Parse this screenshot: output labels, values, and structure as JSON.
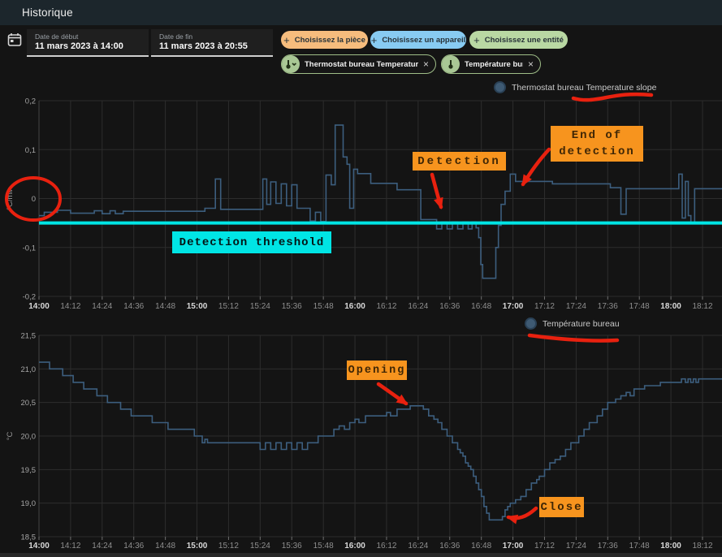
{
  "header": {
    "title": "Historique"
  },
  "toolbar": {
    "date_start": {
      "label": "Date de début",
      "value": "11 mars 2023 à 14:00"
    },
    "date_end": {
      "label": "Date de fin",
      "value": "11 mars 2023 à 20:55"
    },
    "filter_chips": [
      {
        "label": "Choisissez la pièce",
        "glyph": "+",
        "bg": "#f6bc7d"
      },
      {
        "label": "Choisissez un appareil",
        "glyph": "+",
        "bg": "#88cbf2"
      },
      {
        "label": "Choisissez une entité",
        "glyph": "+",
        "bg": "#b9d8a3"
      }
    ],
    "entity_chips": [
      {
        "label": "Thermostat bureau Temperature slope",
        "icon": "thermometer-chevron-icon",
        "close_glyph": "×"
      },
      {
        "label": "Température bureau",
        "icon": "thermometer-icon",
        "close_glyph": "×"
      }
    ]
  },
  "annotations": {
    "detection": "Detection",
    "end_of_detection_line1": "End of",
    "end_of_detection_line2": "detection",
    "detection_threshold": "Detection threshold",
    "opening": "Opening",
    "close": "Close"
  },
  "colors": {
    "annotation_orange": "#f7941e",
    "annotation_cyan": "#00e5e5",
    "annotation_red": "#e8210f",
    "series_blue": "#3c5e7e",
    "header_bg": "#1c262c"
  },
  "chart_data": [
    {
      "type": "line",
      "step": true,
      "name": "slope-chart",
      "legend": "Thermostat bureau Temperature slope",
      "ylabel": "°C/min",
      "ylim": [
        -0.2,
        0.2
      ],
      "grid": true,
      "legend_position": "top-center-right",
      "line_color": "#3c5e7e",
      "threshold": {
        "value": -0.05,
        "color": "#00e5e5",
        "label": "Detection threshold"
      },
      "y_ticks": [
        {
          "value": 0.2,
          "label": "0,2"
        },
        {
          "value": 0.1,
          "label": "0,1"
        },
        {
          "value": 0,
          "label": "0"
        },
        {
          "value": -0.1,
          "label": "-0,1"
        },
        {
          "value": -0.2,
          "label": "-0,2"
        }
      ],
      "x_ticks": [
        "14:00",
        "14:12",
        "14:24",
        "14:36",
        "14:48",
        "15:00",
        "15:12",
        "15:24",
        "15:36",
        "15:48",
        "16:00",
        "16:12",
        "16:24",
        "16:36",
        "16:48",
        "17:00",
        "17:12",
        "17:24",
        "17:36",
        "17:48",
        "18:00",
        "18:12"
      ],
      "x_unit": "minutes_after_14:00",
      "points": [
        [
          0,
          -0.035
        ],
        [
          2,
          -0.028
        ],
        [
          7,
          -0.024
        ],
        [
          12,
          -0.03
        ],
        [
          21,
          -0.025
        ],
        [
          24,
          -0.031
        ],
        [
          27,
          -0.025
        ],
        [
          29,
          -0.031
        ],
        [
          32,
          -0.026
        ],
        [
          63,
          -0.02
        ],
        [
          67,
          0.04
        ],
        [
          69,
          -0.022
        ],
        [
          85,
          0.04
        ],
        [
          86.5,
          -0.012
        ],
        [
          88,
          0.034
        ],
        [
          90,
          -0.01
        ],
        [
          92,
          0.03
        ],
        [
          94,
          -0.015
        ],
        [
          96,
          0.028
        ],
        [
          98,
          -0.02
        ],
        [
          103,
          -0.046
        ],
        [
          105,
          -0.028
        ],
        [
          107,
          -0.047
        ],
        [
          109,
          0.048
        ],
        [
          111,
          0.028
        ],
        [
          112.5,
          0.15
        ],
        [
          115.5,
          0.085
        ],
        [
          117,
          0.07
        ],
        [
          118,
          -0.02
        ],
        [
          119.5,
          0.06
        ],
        [
          121,
          0.051
        ],
        [
          126,
          0.031
        ],
        [
          136,
          0.018
        ],
        [
          145,
          -0.043
        ],
        [
          151,
          -0.062
        ],
        [
          153,
          -0.048
        ],
        [
          155,
          -0.062
        ],
        [
          157,
          -0.048
        ],
        [
          159,
          -0.062
        ],
        [
          161,
          -0.048
        ],
        [
          163,
          -0.062
        ],
        [
          164.5,
          -0.048
        ],
        [
          166,
          -0.06
        ],
        [
          167,
          -0.08
        ],
        [
          167.8,
          -0.135
        ],
        [
          168.5,
          -0.163
        ],
        [
          173.5,
          -0.1
        ],
        [
          174.5,
          -0.055
        ],
        [
          175.5,
          -0.012
        ],
        [
          177,
          0.015
        ],
        [
          179,
          0.05
        ],
        [
          181,
          0.035
        ],
        [
          195,
          0.03
        ],
        [
          217,
          0.022
        ],
        [
          221,
          -0.032
        ],
        [
          223,
          0.02
        ],
        [
          243,
          0.05
        ],
        [
          244.3,
          -0.04
        ],
        [
          245.5,
          0.035
        ],
        [
          246.6,
          -0.035
        ],
        [
          247.6,
          -0.05
        ],
        [
          249,
          0.02
        ]
      ]
    },
    {
      "type": "line",
      "step": true,
      "name": "temperature-chart",
      "legend": "Température bureau",
      "ylabel": "°C",
      "ylim": [
        18.5,
        21.5
      ],
      "grid": true,
      "legend_position": "top-center-right",
      "line_color": "#3c5e7e",
      "y_ticks": [
        {
          "value": 21.5,
          "label": "21,5"
        },
        {
          "value": 21.0,
          "label": "21,0"
        },
        {
          "value": 20.5,
          "label": "20,5"
        },
        {
          "value": 20.0,
          "label": "20,0"
        },
        {
          "value": 19.5,
          "label": "19,5"
        },
        {
          "value": 19.0,
          "label": "19,0"
        },
        {
          "value": 18.5,
          "label": "18,5"
        }
      ],
      "x_ticks": [
        "14:00",
        "14:12",
        "14:24",
        "14:36",
        "14:48",
        "15:00",
        "15:12",
        "15:24",
        "15:36",
        "15:48",
        "16:00",
        "16:12",
        "16:24",
        "16:36",
        "16:48",
        "17:00",
        "17:12",
        "17:24",
        "17:36",
        "17:48",
        "18:00",
        "18:12"
      ],
      "x_unit": "minutes_after_14:00",
      "points": [
        [
          0,
          21.1
        ],
        [
          4,
          21.0
        ],
        [
          9,
          20.9
        ],
        [
          13,
          20.8
        ],
        [
          17,
          20.7
        ],
        [
          22,
          20.6
        ],
        [
          26,
          20.5
        ],
        [
          31,
          20.4
        ],
        [
          35,
          20.3
        ],
        [
          43,
          20.2
        ],
        [
          49,
          20.1
        ],
        [
          59,
          20.0
        ],
        [
          62,
          19.9
        ],
        [
          63,
          19.95
        ],
        [
          64,
          19.9
        ],
        [
          84,
          19.8
        ],
        [
          86,
          19.9
        ],
        [
          88,
          19.8
        ],
        [
          90,
          19.9
        ],
        [
          92,
          19.8
        ],
        [
          94,
          19.9
        ],
        [
          96,
          19.8
        ],
        [
          98,
          19.9
        ],
        [
          100,
          19.8
        ],
        [
          102,
          19.9
        ],
        [
          106,
          20.0
        ],
        [
          112,
          20.1
        ],
        [
          114,
          20.15
        ],
        [
          116,
          20.1
        ],
        [
          118,
          20.2
        ],
        [
          120,
          20.25
        ],
        [
          121.5,
          20.2
        ],
        [
          124,
          20.3
        ],
        [
          132,
          20.35
        ],
        [
          133.5,
          20.3
        ],
        [
          136,
          20.4
        ],
        [
          141,
          20.45
        ],
        [
          146,
          20.4
        ],
        [
          148,
          20.3
        ],
        [
          150,
          20.25
        ],
        [
          151.5,
          20.2
        ],
        [
          153,
          20.1
        ],
        [
          155,
          20.0
        ],
        [
          157,
          19.9
        ],
        [
          159,
          19.8
        ],
        [
          160,
          19.75
        ],
        [
          161,
          19.7
        ],
        [
          162,
          19.6
        ],
        [
          163,
          19.55
        ],
        [
          164,
          19.5
        ],
        [
          165,
          19.4
        ],
        [
          166,
          19.3
        ],
        [
          167,
          19.2
        ],
        [
          168,
          19.1
        ],
        [
          169,
          18.95
        ],
        [
          170,
          18.85
        ],
        [
          171,
          18.75
        ],
        [
          176,
          18.8
        ],
        [
          177,
          18.9
        ],
        [
          178,
          18.95
        ],
        [
          179,
          19.0
        ],
        [
          181,
          19.05
        ],
        [
          183,
          19.1
        ],
        [
          185,
          19.2
        ],
        [
          187,
          19.3
        ],
        [
          189,
          19.35
        ],
        [
          190,
          19.4
        ],
        [
          192,
          19.5
        ],
        [
          194,
          19.6
        ],
        [
          196,
          19.65
        ],
        [
          198,
          19.7
        ],
        [
          200,
          19.8
        ],
        [
          202,
          19.9
        ],
        [
          205,
          20.0
        ],
        [
          207,
          20.1
        ],
        [
          209,
          20.2
        ],
        [
          212,
          20.3
        ],
        [
          214,
          20.4
        ],
        [
          216,
          20.5
        ],
        [
          219,
          20.55
        ],
        [
          221,
          20.6
        ],
        [
          223,
          20.65
        ],
        [
          224.5,
          20.6
        ],
        [
          226,
          20.7
        ],
        [
          230,
          20.75
        ],
        [
          236,
          20.8
        ],
        [
          244,
          20.85
        ],
        [
          245.5,
          20.8
        ],
        [
          246.5,
          20.85
        ],
        [
          247.5,
          20.8
        ],
        [
          248.5,
          20.85
        ],
        [
          249.5,
          20.8
        ],
        [
          250.5,
          20.85
        ]
      ]
    }
  ]
}
